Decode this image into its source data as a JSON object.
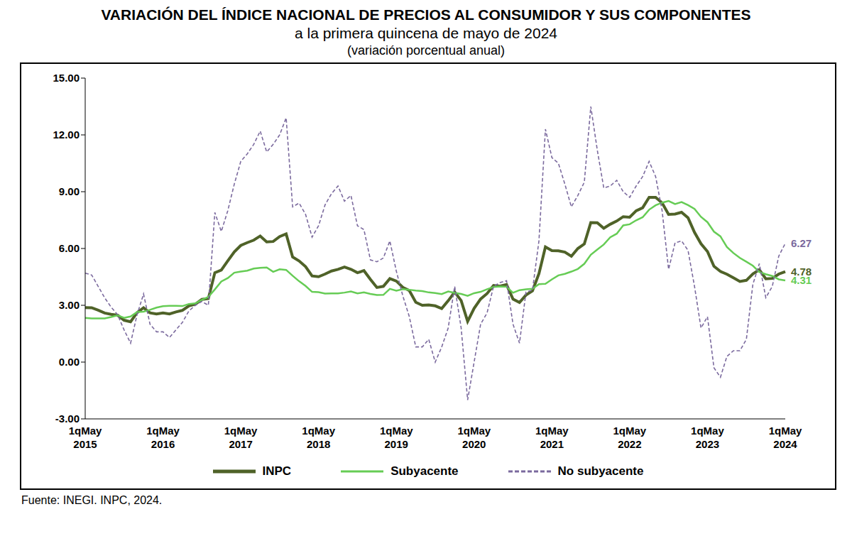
{
  "chart_data": {
    "type": "line",
    "title": "VARIACIÓN DEL ÍNDICE NACIONAL DE PRECIOS AL CONSUMIDOR Y SUS COMPONENTES",
    "subtitle": [
      "a la primera quincena de mayo de 2024",
      "(variación porcentual anual)"
    ],
    "source": "Fuente: INEGI. INPC, 2024.",
    "categories": [
      "1qMay 2015",
      null,
      null,
      null,
      null,
      null,
      null,
      null,
      null,
      null,
      null,
      null,
      "1qMay 2016",
      null,
      null,
      null,
      null,
      null,
      null,
      null,
      null,
      null,
      null,
      null,
      "1qMay 2017",
      null,
      null,
      null,
      null,
      null,
      null,
      null,
      null,
      null,
      null,
      null,
      "1qMay 2018",
      null,
      null,
      null,
      null,
      null,
      null,
      null,
      null,
      null,
      null,
      null,
      "1qMay 2019",
      null,
      null,
      null,
      null,
      null,
      null,
      null,
      null,
      null,
      null,
      null,
      "1qMay 2020",
      null,
      null,
      null,
      null,
      null,
      null,
      null,
      null,
      null,
      null,
      null,
      "1qMay 2021",
      null,
      null,
      null,
      null,
      null,
      null,
      null,
      null,
      null,
      null,
      null,
      "1qMay 2022",
      null,
      null,
      null,
      null,
      null,
      null,
      null,
      null,
      null,
      null,
      null,
      "1qMay 2023",
      null,
      null,
      null,
      null,
      null,
      null,
      null,
      null,
      null,
      null,
      null,
      "1qMay 2024"
    ],
    "series": [
      {
        "name": "INPC",
        "color": "#4f6228",
        "line_style": "solid",
        "values": [
          2.88,
          2.87,
          2.74,
          2.59,
          2.52,
          2.48,
          2.21,
          2.13,
          2.61,
          2.87,
          2.6,
          2.54,
          2.6,
          2.54,
          2.65,
          2.73,
          2.97,
          3.06,
          3.31,
          3.36,
          4.72,
          4.86,
          5.35,
          5.82,
          6.16,
          6.31,
          6.44,
          6.66,
          6.35,
          6.37,
          6.63,
          6.77,
          5.55,
          5.34,
          5.04,
          4.55,
          4.51,
          4.65,
          4.81,
          4.9,
          5.02,
          4.9,
          4.72,
          4.83,
          4.37,
          3.94,
          4.0,
          4.41,
          4.28,
          3.95,
          3.78,
          3.16,
          3.0,
          3.02,
          2.97,
          2.83,
          3.24,
          3.7,
          3.25,
          2.15,
          2.84,
          3.33,
          3.62,
          4.05,
          4.01,
          4.09,
          3.33,
          3.15,
          3.54,
          3.76,
          4.67,
          6.08,
          5.89,
          5.88,
          5.81,
          5.59,
          6.0,
          6.24,
          7.37,
          7.36,
          7.07,
          7.28,
          7.45,
          7.68,
          7.65,
          7.99,
          8.15,
          8.7,
          8.7,
          8.41,
          7.8,
          7.82,
          7.91,
          7.62,
          6.85,
          6.25,
          5.84,
          5.06,
          4.79,
          4.64,
          4.45,
          4.26,
          4.32,
          4.66,
          4.88,
          4.4,
          4.42,
          4.65,
          4.78
        ]
      },
      {
        "name": "Subyacente",
        "color": "#66cc55",
        "line_style": "solid",
        "values": [
          2.33,
          2.31,
          2.31,
          2.31,
          2.38,
          2.47,
          2.34,
          2.41,
          2.64,
          2.66,
          2.76,
          2.88,
          2.95,
          2.97,
          2.97,
          2.96,
          3.07,
          3.1,
          3.29,
          3.44,
          3.84,
          4.26,
          4.44,
          4.72,
          4.78,
          4.83,
          4.94,
          4.98,
          5.0,
          4.77,
          4.9,
          4.87,
          4.56,
          4.27,
          4.02,
          3.71,
          3.69,
          3.62,
          3.63,
          3.63,
          3.67,
          3.73,
          3.63,
          3.68,
          3.6,
          3.54,
          3.55,
          3.87,
          3.77,
          3.85,
          3.82,
          3.78,
          3.75,
          3.68,
          3.65,
          3.59,
          3.73,
          3.66,
          3.6,
          3.5,
          3.64,
          3.71,
          3.85,
          3.97,
          3.99,
          3.98,
          3.66,
          3.8,
          3.84,
          3.87,
          4.12,
          4.13,
          4.37,
          4.58,
          4.66,
          4.78,
          4.92,
          5.19,
          5.67,
          5.94,
          6.21,
          6.59,
          6.78,
          7.22,
          7.28,
          7.49,
          7.65,
          8.05,
          8.28,
          8.42,
          8.51,
          8.35,
          8.45,
          8.29,
          8.09,
          7.67,
          7.39,
          6.89,
          6.64,
          6.08,
          5.76,
          5.5,
          5.3,
          5.09,
          4.76,
          4.64,
          4.55,
          4.37,
          4.31
        ]
      },
      {
        "name": "No subyacente",
        "color": "#7b6a9e",
        "line_style": "dashed",
        "values": [
          4.7,
          4.6,
          4.0,
          3.4,
          2.9,
          2.5,
          1.7,
          1.0,
          2.5,
          3.6,
          2.0,
          1.6,
          1.6,
          1.3,
          1.7,
          2.1,
          2.7,
          3.0,
          3.2,
          3.0,
          7.9,
          6.9,
          8.0,
          9.4,
          10.6,
          11.0,
          11.5,
          12.2,
          11.1,
          11.5,
          12.0,
          12.9,
          8.2,
          8.4,
          7.8,
          6.6,
          7.2,
          8.3,
          8.9,
          9.3,
          8.5,
          8.8,
          7.2,
          7.0,
          5.4,
          5.3,
          5.5,
          6.4,
          4.8,
          3.5,
          2.4,
          0.8,
          0.8,
          1.2,
          0.0,
          0.8,
          1.8,
          4.0,
          1.8,
          -2.0,
          0.0,
          2.0,
          2.6,
          4.0,
          4.2,
          4.3,
          2.0,
          1.0,
          3.7,
          3.8,
          6.4,
          12.3,
          10.8,
          10.5,
          9.4,
          8.2,
          8.8,
          9.5,
          13.5,
          11.2,
          9.2,
          9.3,
          9.6,
          9.0,
          8.7,
          9.3,
          9.8,
          10.6,
          9.8,
          8.0,
          4.9,
          6.3,
          6.4,
          5.9,
          4.0,
          1.8,
          2.4,
          -0.3,
          -0.8,
          0.3,
          0.6,
          0.6,
          1.2,
          4.1,
          5.2,
          3.4,
          4.0,
          5.6,
          6.27
        ]
      }
    ],
    "ylim": [
      -3,
      15
    ],
    "yticks": [
      {
        "value": -3,
        "label": "-3.00"
      },
      {
        "value": 0,
        "label": "0.00"
      },
      {
        "value": 3,
        "label": "3.00"
      },
      {
        "value": 6,
        "label": "6.00"
      },
      {
        "value": 9,
        "label": "9.00"
      },
      {
        "value": 12,
        "label": "12.00"
      },
      {
        "value": 15,
        "label": "15.00"
      }
    ],
    "grid": false,
    "legend": "bottom"
  }
}
